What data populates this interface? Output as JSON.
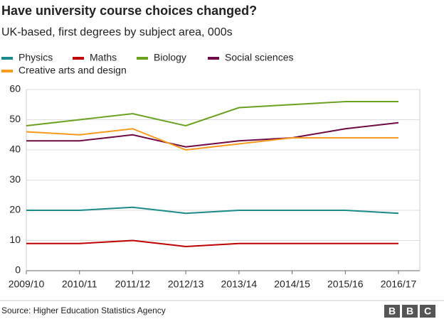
{
  "chart_data": {
    "type": "line",
    "title": "Have university course choices changed?",
    "subtitle": "UK-based, first degrees by subject area, 000s",
    "categories": [
      "2009/10",
      "2010/11",
      "2011/12",
      "2012/13",
      "2013/14",
      "2014/15",
      "2015/16",
      "2016/17"
    ],
    "series": [
      {
        "name": "Physics",
        "color": "#1b8a8a",
        "values": [
          20,
          20,
          21,
          19,
          20,
          20,
          20,
          19
        ]
      },
      {
        "name": "Maths",
        "color": "#c00000",
        "values": [
          9,
          9,
          10,
          8,
          9,
          9,
          9,
          9
        ]
      },
      {
        "name": "Biology",
        "color": "#6aa121",
        "values": [
          48,
          50,
          52,
          48,
          54,
          55,
          56,
          56
        ]
      },
      {
        "name": "Social sciences",
        "color": "#6e0b46",
        "values": [
          43,
          43,
          45,
          41,
          43,
          44,
          47,
          49
        ]
      },
      {
        "name": "Creative arts and design",
        "color": "#f79a1e",
        "values": [
          46,
          45,
          47,
          40,
          42,
          44,
          44,
          44
        ]
      }
    ],
    "ylim": [
      0,
      60
    ],
    "yticks": [
      0,
      10,
      20,
      30,
      40,
      50,
      60
    ],
    "grid": true,
    "source": "Source: Higher Education Statistics Agency",
    "logo": [
      "B",
      "B",
      "C"
    ]
  }
}
